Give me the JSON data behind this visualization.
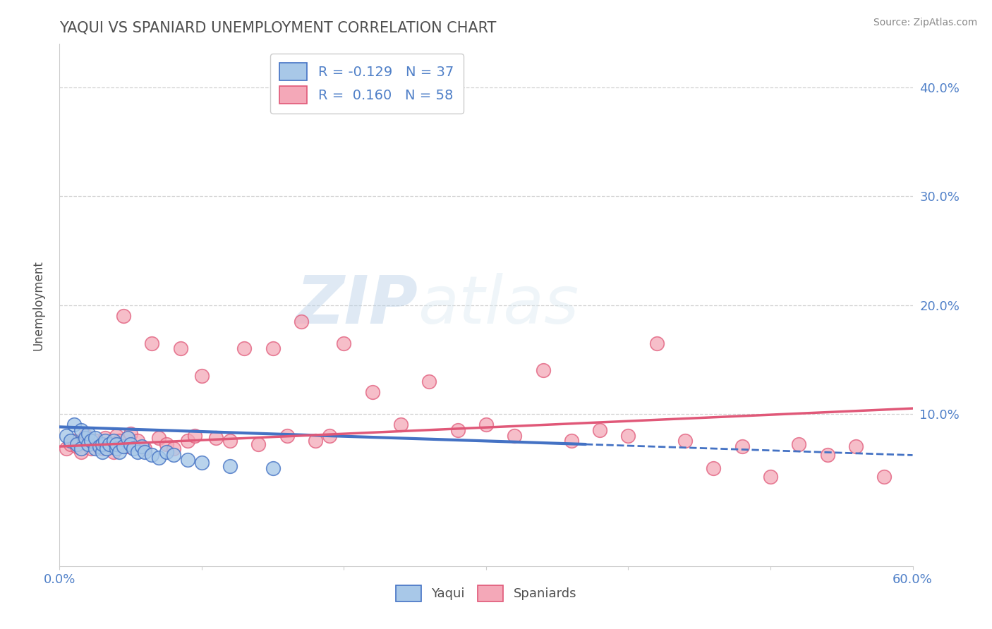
{
  "title": "YAQUI VS SPANIARD UNEMPLOYMENT CORRELATION CHART",
  "source": "Source: ZipAtlas.com",
  "ylabel": "Unemployment",
  "xlim": [
    0.0,
    0.6
  ],
  "ylim": [
    -0.04,
    0.44
  ],
  "x_tick_vals": [
    0.0,
    0.1,
    0.2,
    0.3,
    0.4,
    0.5,
    0.6
  ],
  "x_tick_labels": [
    "0.0%",
    "",
    "",
    "",
    "",
    "",
    "60.0%"
  ],
  "y_tick_vals": [
    0.1,
    0.2,
    0.3,
    0.4
  ],
  "y_tick_labels": [
    "10.0%",
    "20.0%",
    "30.0%",
    "40.0%"
  ],
  "legend_r_yaqui": "-0.129",
  "legend_n_yaqui": "37",
  "legend_r_spaniards": "0.160",
  "legend_n_spaniards": "58",
  "yaqui_color": "#a8c8e8",
  "spaniard_color": "#f4a8b8",
  "yaqui_line_color": "#4472c4",
  "spaniard_line_color": "#e05878",
  "grid_color": "#d0d0d0",
  "title_color": "#505050",
  "tick_color": "#5080c8",
  "watermark_zip": "ZIP",
  "watermark_atlas": "atlas",
  "yaqui_x": [
    0.005,
    0.008,
    0.01,
    0.012,
    0.015,
    0.015,
    0.018,
    0.02,
    0.02,
    0.022,
    0.025,
    0.025,
    0.028,
    0.03,
    0.03,
    0.032,
    0.033,
    0.035,
    0.038,
    0.04,
    0.04,
    0.042,
    0.045,
    0.048,
    0.05,
    0.052,
    0.055,
    0.058,
    0.06,
    0.065,
    0.07,
    0.075,
    0.08,
    0.09,
    0.1,
    0.12,
    0.15
  ],
  "yaqui_y": [
    0.08,
    0.075,
    0.09,
    0.072,
    0.068,
    0.085,
    0.078,
    0.072,
    0.082,
    0.075,
    0.068,
    0.078,
    0.07,
    0.065,
    0.072,
    0.075,
    0.068,
    0.072,
    0.075,
    0.068,
    0.072,
    0.065,
    0.07,
    0.078,
    0.072,
    0.068,
    0.065,
    0.07,
    0.065,
    0.062,
    0.06,
    0.065,
    0.062,
    0.058,
    0.055,
    0.052,
    0.05
  ],
  "spaniard_x": [
    0.005,
    0.008,
    0.01,
    0.012,
    0.015,
    0.018,
    0.02,
    0.022,
    0.025,
    0.028,
    0.03,
    0.032,
    0.035,
    0.038,
    0.04,
    0.042,
    0.045,
    0.048,
    0.05,
    0.055,
    0.06,
    0.065,
    0.07,
    0.075,
    0.08,
    0.085,
    0.09,
    0.095,
    0.1,
    0.11,
    0.12,
    0.13,
    0.14,
    0.15,
    0.16,
    0.17,
    0.18,
    0.19,
    0.2,
    0.22,
    0.24,
    0.26,
    0.28,
    0.3,
    0.32,
    0.34,
    0.36,
    0.38,
    0.4,
    0.42,
    0.44,
    0.46,
    0.48,
    0.5,
    0.52,
    0.54,
    0.56,
    0.58
  ],
  "spaniard_y": [
    0.068,
    0.072,
    0.075,
    0.07,
    0.065,
    0.08,
    0.072,
    0.068,
    0.075,
    0.07,
    0.068,
    0.078,
    0.072,
    0.065,
    0.08,
    0.075,
    0.19,
    0.07,
    0.082,
    0.075,
    0.068,
    0.165,
    0.078,
    0.072,
    0.068,
    0.16,
    0.075,
    0.08,
    0.135,
    0.078,
    0.075,
    0.16,
    0.072,
    0.16,
    0.08,
    0.185,
    0.075,
    0.08,
    0.165,
    0.12,
    0.09,
    0.13,
    0.085,
    0.09,
    0.08,
    0.14,
    0.075,
    0.085,
    0.08,
    0.165,
    0.075,
    0.05,
    0.07,
    0.042,
    0.072,
    0.062,
    0.07,
    0.042
  ],
  "blue_line_x_solid_start": 0.0,
  "blue_line_x_solid_end": 0.37,
  "blue_line_x_dash_end": 0.6,
  "blue_line_y_at_0": 0.088,
  "blue_line_y_at_037": 0.072,
  "blue_line_y_at_060": 0.062,
  "pink_line_y_at_0": 0.07,
  "pink_line_y_at_060": 0.105
}
